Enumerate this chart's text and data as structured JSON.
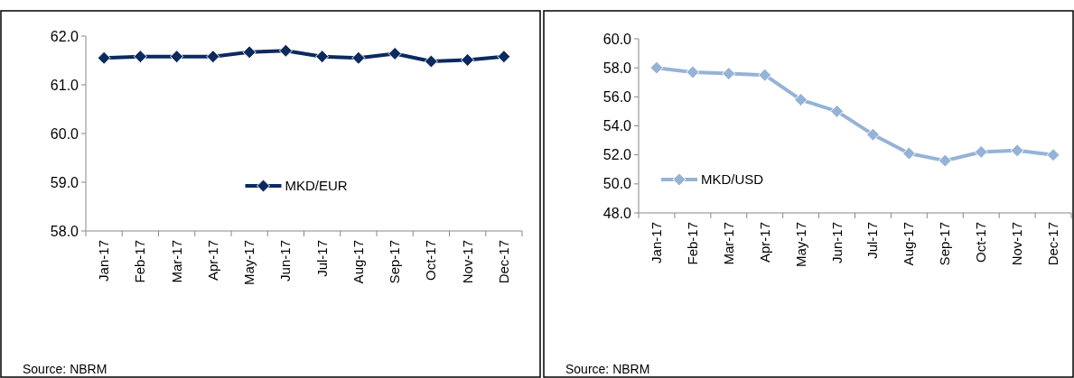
{
  "chart_data": [
    {
      "type": "line",
      "categories": [
        "Jan-17",
        "Feb-17",
        "Mar-17",
        "Apr-17",
        "May-17",
        "Jun-17",
        "Jul-17",
        "Aug-17",
        "Sep-17",
        "Oct-17",
        "Nov-17",
        "Dec-17"
      ],
      "series": [
        {
          "name": "MKD/EUR",
          "color": "#0b2a5e",
          "values": [
            61.55,
            61.58,
            61.58,
            61.58,
            61.67,
            61.7,
            61.58,
            61.55,
            61.64,
            61.48,
            61.51,
            61.58
          ]
        }
      ],
      "ylim": [
        58,
        62
      ],
      "yticks": [
        {
          "value": 58,
          "label": "58.0"
        },
        {
          "value": 59,
          "label": "59.0"
        },
        {
          "value": 60,
          "label": "60.0"
        },
        {
          "value": 61,
          "label": "61.0"
        },
        {
          "value": 62,
          "label": "62.0"
        }
      ],
      "marker": "diamond",
      "legend": "bottom",
      "grid": false,
      "annotations": [
        "Source: NBRM"
      ]
    },
    {
      "type": "line",
      "categories": [
        "Jan-17",
        "Feb-17",
        "Mar-17",
        "Apr-17",
        "May-17",
        "Jun-17",
        "Jul-17",
        "Aug-17",
        "Sep-17",
        "Oct-17",
        "Nov-17",
        "Dec-17"
      ],
      "series": [
        {
          "name": "MKD/USD",
          "color": "#95b3d7",
          "values": [
            58.0,
            57.7,
            57.6,
            57.5,
            55.8,
            55.0,
            53.4,
            52.1,
            51.6,
            52.2,
            52.3,
            52.0
          ]
        }
      ],
      "ylim": [
        48,
        60
      ],
      "yticks": [
        {
          "value": 48,
          "label": "48.0"
        },
        {
          "value": 50,
          "label": "50.0"
        },
        {
          "value": 52,
          "label": "52.0"
        },
        {
          "value": 54,
          "label": "54.0"
        },
        {
          "value": 56,
          "label": "56.0"
        },
        {
          "value": 58,
          "label": "58.0"
        },
        {
          "value": 60,
          "label": "60.0"
        }
      ],
      "marker": "diamond",
      "legend": "bottom left",
      "grid": false,
      "annotations": [
        "Source: NBRM"
      ]
    }
  ]
}
